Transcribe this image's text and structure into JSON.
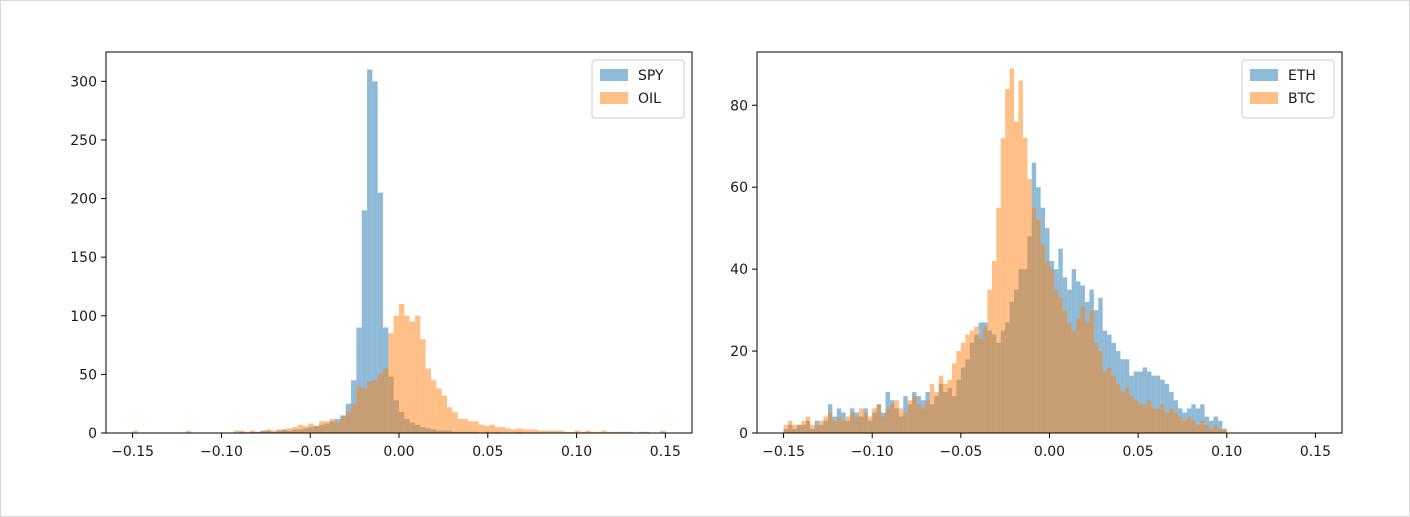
{
  "chart_data": [
    {
      "type": "histogram",
      "xlim": [
        -0.165,
        0.165
      ],
      "ylim": [
        0,
        325
      ],
      "xticks": [
        -0.15,
        -0.1,
        -0.05,
        0.0,
        0.05,
        0.1,
        0.15
      ],
      "xtick_labels": [
        "−0.15",
        "−0.10",
        "−0.05",
        "0.00",
        "0.05",
        "0.10",
        "0.15"
      ],
      "yticks": [
        0,
        50,
        100,
        150,
        200,
        250,
        300
      ],
      "ytick_labels": [
        "0",
        "50",
        "100",
        "150",
        "200",
        "250",
        "300"
      ],
      "legend_position": "top-right",
      "series": [
        {
          "name": "SPY",
          "color": "#1f77b4",
          "alpha": 0.5,
          "bin_start": -0.09,
          "bin_width": 0.003,
          "values": [
            1,
            0,
            1,
            1,
            2,
            2,
            1,
            2,
            3,
            2,
            3,
            3,
            4,
            5,
            6,
            7,
            8,
            10,
            12,
            15,
            25,
            45,
            90,
            190,
            310,
            300,
            205,
            90,
            48,
            28,
            18,
            12,
            9,
            7,
            5,
            4,
            3,
            2,
            2,
            2,
            1,
            1,
            1,
            1,
            1,
            0,
            1,
            0,
            1,
            0,
            0,
            0,
            1,
            0,
            0,
            0,
            0,
            0,
            0,
            0
          ]
        },
        {
          "name": "OIL",
          "color": "#ff7f0e",
          "alpha": 0.5,
          "bin_start": -0.15,
          "bin_width": 0.003,
          "values": [
            2,
            0,
            0,
            0,
            0,
            0,
            0,
            0,
            0,
            0,
            2,
            0,
            0,
            0,
            0,
            0,
            0,
            0,
            0,
            2,
            2,
            1,
            2,
            1,
            2,
            3,
            2,
            3,
            3,
            4,
            5,
            7,
            6,
            8,
            6,
            10,
            10,
            12,
            9,
            14,
            18,
            25,
            40,
            38,
            44,
            45,
            50,
            55,
            85,
            100,
            110,
            100,
            95,
            100,
            80,
            55,
            45,
            38,
            32,
            22,
            18,
            12,
            12,
            10,
            10,
            7,
            6,
            7,
            5,
            5,
            4,
            3,
            4,
            3,
            3,
            3,
            2,
            2,
            2,
            2,
            2,
            1,
            1,
            2,
            1,
            2,
            1,
            1,
            2,
            1,
            1,
            1,
            1,
            1,
            0,
            1,
            1,
            0,
            0,
            2
          ]
        }
      ]
    },
    {
      "type": "histogram",
      "xlim": [
        -0.165,
        0.165
      ],
      "ylim": [
        0,
        93
      ],
      "xticks": [
        -0.15,
        -0.1,
        -0.05,
        0.0,
        0.05,
        0.1,
        0.15
      ],
      "xtick_labels": [
        "−0.15",
        "−0.10",
        "−0.05",
        "0.00",
        "0.05",
        "0.10",
        "0.15"
      ],
      "yticks": [
        0,
        20,
        40,
        60,
        80
      ],
      "ytick_labels": [
        "0",
        "20",
        "40",
        "60",
        "80"
      ],
      "legend_position": "top-right",
      "series": [
        {
          "name": "ETH",
          "color": "#1f77b4",
          "alpha": 0.5,
          "bin_start": -0.15,
          "bin_width": 0.0025,
          "values": [
            1,
            2,
            1,
            2,
            2,
            3,
            1,
            3,
            2,
            3,
            7,
            4,
            6,
            5,
            3,
            6,
            5,
            4,
            6,
            3,
            5,
            7,
            5,
            10,
            8,
            6,
            4,
            9,
            7,
            10,
            9,
            8,
            10,
            7,
            9,
            12,
            10,
            11,
            9,
            13,
            16,
            18,
            22,
            24,
            27,
            27,
            25,
            24,
            22,
            25,
            27,
            32,
            35,
            40,
            40,
            48,
            66,
            60,
            55,
            50,
            42,
            40,
            45,
            38,
            35,
            40,
            37,
            36,
            32,
            35,
            30,
            33,
            25,
            24,
            22,
            20,
            18,
            18,
            14,
            15,
            15,
            16,
            15,
            14,
            14,
            13,
            12,
            10,
            8,
            6,
            5,
            6,
            7,
            6,
            7,
            4,
            3,
            4,
            3,
            1
          ]
        },
        {
          "name": "BTC",
          "color": "#ff7f0e",
          "alpha": 0.5,
          "bin_start": -0.15,
          "bin_width": 0.0025,
          "values": [
            2,
            3,
            2,
            2,
            3,
            4,
            2,
            2,
            3,
            4,
            5,
            3,
            4,
            3,
            4,
            5,
            4,
            6,
            5,
            4,
            6,
            7,
            4,
            6,
            7,
            8,
            6,
            5,
            8,
            9,
            7,
            6,
            8,
            12,
            10,
            14,
            12,
            13,
            17,
            20,
            22,
            24,
            25,
            26,
            23,
            26,
            35,
            42,
            55,
            72,
            84,
            89,
            76,
            86,
            72,
            62,
            55,
            52,
            46,
            42,
            40,
            35,
            33,
            30,
            27,
            25,
            28,
            31,
            27,
            30,
            22,
            20,
            15,
            16,
            14,
            12,
            10,
            11,
            9,
            8,
            7,
            7,
            8,
            6,
            6,
            7,
            5,
            6,
            5,
            4,
            3,
            4,
            3,
            2,
            3,
            2,
            1,
            2,
            1,
            1
          ]
        }
      ]
    }
  ]
}
